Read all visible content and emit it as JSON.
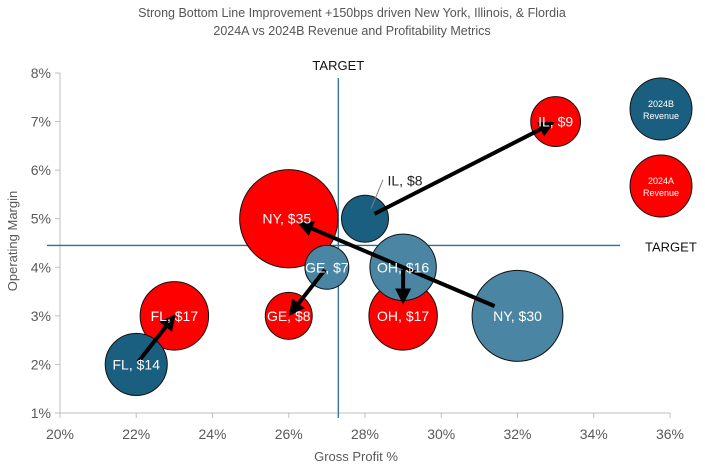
{
  "chart_data": {
    "type": "bubble",
    "title": "Strong Bottom Line Improvement +150bps driven New York, Illinois, & Flordia",
    "subtitle": "2024A vs 2024B Revenue and Profitability Metrics",
    "xlabel": "Gross Profit %",
    "ylabel": "Operating Margin",
    "xlim": [
      20,
      36
    ],
    "ylim": [
      1,
      8
    ],
    "x_ticks": [
      "20%",
      "22%",
      "24%",
      "26%",
      "28%",
      "30%",
      "32%",
      "34%",
      "36%"
    ],
    "y_ticks": [
      "1%",
      "2%",
      "3%",
      "4%",
      "5%",
      "6%",
      "7%",
      "8%"
    ],
    "targets": {
      "x": 27.3,
      "y": 4.45,
      "x_label": "TARGET",
      "y_label": "TARGET"
    },
    "legend": [
      {
        "name": "2024B Revenue",
        "line1": "2024B",
        "line2": "Revenue",
        "color": "#1b5f80"
      },
      {
        "name": "2024A Revenue",
        "line1": "2024A",
        "line2": "Revenue",
        "color": "#ff0000"
      }
    ],
    "series": [
      {
        "name": "2024B Revenue",
        "color": "#1b5f80",
        "points": [
          {
            "label": "FL, $14",
            "state": "FL",
            "x": 22,
            "y": 2,
            "revenue": 14
          },
          {
            "label": "GE, $7",
            "state": "GE",
            "x": 27,
            "y": 4,
            "revenue": 7
          },
          {
            "label": "IL, $8",
            "state": "IL",
            "x": 28,
            "y": 5,
            "revenue": 8
          },
          {
            "label": "OH, $16",
            "state": "OH",
            "x": 29,
            "y": 4,
            "revenue": 16
          },
          {
            "label": "NY, $30",
            "state": "NY",
            "x": 32,
            "y": 3,
            "revenue": 30
          }
        ]
      },
      {
        "name": "2024A Revenue",
        "color": "#ff0000",
        "points": [
          {
            "label": "FL, $17",
            "state": "FL",
            "x": 23,
            "y": 3,
            "revenue": 17
          },
          {
            "label": "GE, $8",
            "state": "GE",
            "x": 26,
            "y": 3,
            "revenue": 8
          },
          {
            "label": "IL, $9",
            "state": "IL",
            "x": 33,
            "y": 7,
            "revenue": 9
          },
          {
            "label": "OH, $17",
            "state": "OH",
            "x": 29,
            "y": 3,
            "revenue": 17
          },
          {
            "label": "NY, $35",
            "state": "NY",
            "x": 26,
            "y": 5,
            "revenue": 35
          }
        ]
      }
    ],
    "arrows": [
      {
        "from": "FL 2024B",
        "to": "FL 2024A"
      },
      {
        "from": "GE 2024B",
        "to": "GE 2024A"
      },
      {
        "from": "IL 2024B",
        "to": "IL 2024A"
      },
      {
        "from": "OH 2024B",
        "to": "OH 2024A"
      },
      {
        "from": "NY 2024B",
        "to": "NY 2024A"
      }
    ]
  }
}
